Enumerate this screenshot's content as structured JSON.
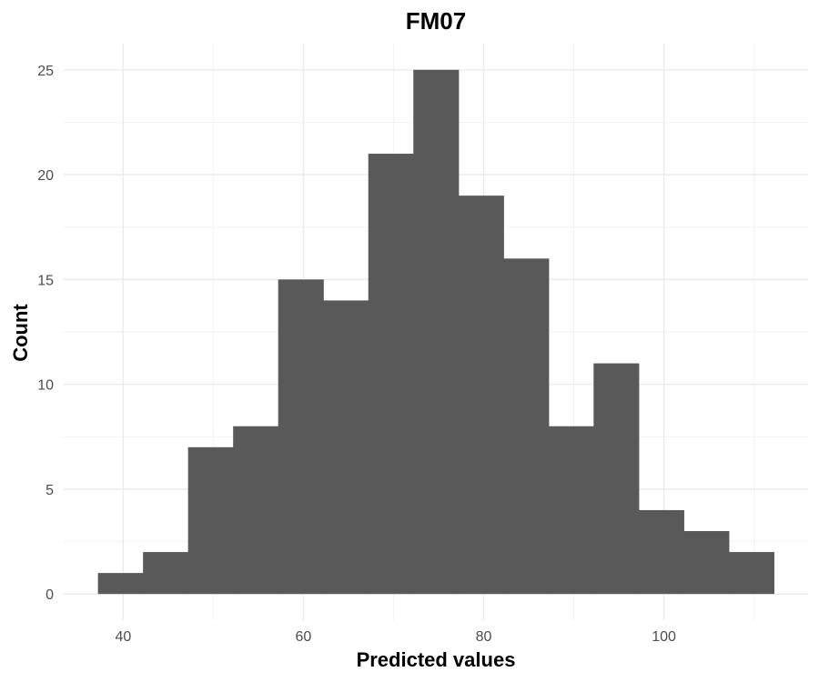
{
  "chart_data": {
    "type": "bar",
    "subtype": "histogram",
    "title": "FM07",
    "xlabel": "Predicted values",
    "ylabel": "Count",
    "bin_width": 5,
    "bins": [
      {
        "x0": 37.2,
        "x1": 42.2,
        "count": 1
      },
      {
        "x0": 42.2,
        "x1": 47.2,
        "count": 2
      },
      {
        "x0": 47.2,
        "x1": 52.2,
        "count": 7
      },
      {
        "x0": 52.2,
        "x1": 57.2,
        "count": 8
      },
      {
        "x0": 57.2,
        "x1": 62.2,
        "count": 15
      },
      {
        "x0": 62.2,
        "x1": 67.2,
        "count": 14
      },
      {
        "x0": 67.2,
        "x1": 72.2,
        "count": 21
      },
      {
        "x0": 72.2,
        "x1": 77.2,
        "count": 25
      },
      {
        "x0": 77.2,
        "x1": 82.2,
        "count": 19
      },
      {
        "x0": 82.2,
        "x1": 87.2,
        "count": 16
      },
      {
        "x0": 87.2,
        "x1": 92.2,
        "count": 8
      },
      {
        "x0": 92.2,
        "x1": 97.2,
        "count": 11
      },
      {
        "x0": 97.2,
        "x1": 102.2,
        "count": 4
      },
      {
        "x0": 102.2,
        "x1": 107.2,
        "count": 3
      },
      {
        "x0": 107.2,
        "x1": 112.2,
        "count": 2
      }
    ],
    "xlim": [
      33.4,
      116.0
    ],
    "ylim": [
      -1.25,
      26.25
    ],
    "xticks": [
      40,
      60,
      80,
      100
    ],
    "yticks": [
      0,
      5,
      10,
      15,
      20,
      25
    ],
    "bar_color": "#595959",
    "grid": true,
    "theme": "minimal"
  }
}
